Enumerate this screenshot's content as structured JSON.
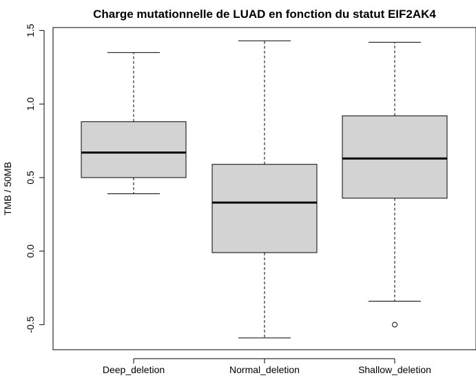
{
  "chart_data": {
    "type": "box",
    "title": "Charge mutationnelle de LUAD en fonction du statut EIF2AK4",
    "xlabel": "",
    "ylabel": "TMB / 50MB",
    "ylim": [
      -0.67,
      1.52
    ],
    "yticks": [
      "-0.5",
      "0.0",
      "0.5",
      "1.0",
      "1.5"
    ],
    "ytick_values": [
      -0.5,
      0.0,
      0.5,
      1.0,
      1.5
    ],
    "categories": [
      "Deep_deletion",
      "Normal_deletion",
      "Shallow_deletion"
    ],
    "boxes": [
      {
        "category": "Deep_deletion",
        "whisker_low": 0.39,
        "q1": 0.5,
        "median": 0.67,
        "q3": 0.88,
        "whisker_high": 1.35,
        "outliers": []
      },
      {
        "category": "Normal_deletion",
        "whisker_low": -0.59,
        "q1": -0.01,
        "median": 0.33,
        "q3": 0.59,
        "whisker_high": 1.43,
        "outliers": []
      },
      {
        "category": "Shallow_deletion",
        "whisker_low": -0.34,
        "q1": 0.36,
        "median": 0.63,
        "q3": 0.92,
        "whisker_high": 1.42,
        "outliers": [
          -0.5
        ]
      }
    ],
    "colors": {
      "box_fill": "#d3d3d3",
      "stroke": "#000000",
      "background": "#ffffff"
    },
    "grid": false,
    "legend": "none"
  }
}
